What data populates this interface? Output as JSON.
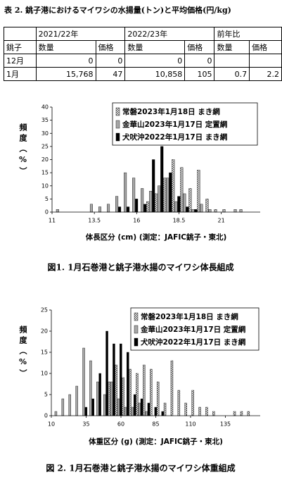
{
  "table": {
    "title": "表 2. 銚子港におけるマイワシの水揚量(トン)と平均価格(円/kg)",
    "groups": [
      "2021/22年",
      "2022/23年",
      "前年比"
    ],
    "columns": [
      "銚子",
      "数量",
      "価格",
      "数量",
      "価格",
      "数量",
      "価格"
    ],
    "rows": [
      [
        "12月",
        0,
        0,
        0,
        0
      ],
      [
        "1月",
        "15,768",
        47,
        "10,858",
        105,
        0.7,
        2.2
      ]
    ]
  },
  "chart_data": [
    {
      "type": "bar",
      "xlabel": "体長区分 (cm)  (測定：JAFIC銚子・東北)",
      "ylabel": "頻度（%）",
      "caption": "図1.  1月石巻港と銚子港水揚のマイワシ体長組成",
      "x": [
        11.5,
        12,
        12.5,
        13,
        13.5,
        14,
        14.5,
        15,
        15.5,
        16,
        16.5,
        17,
        17.5,
        18,
        18.5,
        19,
        19.5,
        20,
        20.5,
        21,
        21.5,
        22
      ],
      "series": [
        {
          "name": "常磐2023年1月18日  まき網",
          "color": "#ffffff",
          "pattern": "dots",
          "values": [
            0,
            0,
            0,
            0,
            0,
            0,
            0,
            0,
            0,
            0,
            4,
            7,
            13,
            20,
            17,
            9,
            16,
            5,
            1,
            1,
            0,
            1
          ]
        },
        {
          "name": "金華山2023年1月17日  定置網",
          "color": "#a6a6a6",
          "values": [
            1,
            0,
            0,
            0,
            3,
            2,
            3,
            6,
            15,
            13,
            9,
            8,
            10,
            13,
            4,
            7,
            1,
            3,
            1,
            0,
            0,
            1
          ]
        },
        {
          "name": "犬吠沖2022年1月17日  まき網",
          "color": "#000000",
          "values": [
            0,
            0,
            0,
            0,
            0,
            0,
            0,
            2,
            2,
            5,
            3,
            20,
            25,
            15,
            6,
            2,
            1,
            0,
            0,
            0,
            0,
            0
          ]
        }
      ],
      "xlim": [
        11,
        23.3
      ],
      "xticks": [
        11,
        13.5,
        16,
        18.5,
        21
      ],
      "ylim": [
        0,
        40
      ],
      "yticks": [
        0,
        5,
        10,
        15,
        20,
        25,
        30,
        35,
        40
      ],
      "legend": "top-right"
    },
    {
      "type": "bar",
      "xlabel": "体重区分 (g)  (測定：JAFIC銚子・東北)",
      "ylabel": "頻度（%）",
      "caption": "図 2. 1月石巻港と銚子港水揚のマイワシ体重組成",
      "x": [
        15,
        20,
        25,
        30,
        35,
        40,
        45,
        50,
        55,
        60,
        65,
        70,
        75,
        80,
        85,
        90,
        95,
        100,
        105,
        110,
        115,
        120,
        125,
        130,
        135,
        140,
        145,
        150
      ],
      "series": [
        {
          "name": "常磐2023年1月18日  まき網",
          "color": "#ffffff",
          "pattern": "dots",
          "values": [
            0,
            0,
            0,
            0,
            0,
            0,
            0,
            8,
            12,
            9,
            11,
            10,
            12,
            11,
            8,
            3,
            13,
            6,
            3,
            6,
            2,
            2,
            1,
            0,
            0,
            1,
            1,
            1
          ]
        },
        {
          "name": "金華山2023年1月17日  定置網",
          "color": "#a6a6a6",
          "values": [
            1,
            4,
            5,
            7,
            16,
            13,
            8,
            5,
            8,
            4,
            2,
            2,
            3,
            1,
            0,
            0,
            0,
            0,
            0,
            0,
            0,
            0,
            0,
            0,
            0,
            0,
            0,
            0
          ]
        },
        {
          "name": "犬吠沖2022年1月17日  まき網",
          "color": "#000000",
          "values": [
            0,
            0,
            0,
            0,
            2,
            4,
            10,
            20,
            17,
            17,
            15,
            5,
            4,
            3,
            2,
            1,
            0,
            0,
            0,
            0,
            0,
            0,
            0,
            0,
            0,
            0,
            0,
            0
          ]
        }
      ],
      "xlim": [
        10,
        160
      ],
      "xticks": [
        10,
        35,
        60,
        85,
        110,
        135
      ],
      "ylim": [
        0,
        25
      ],
      "yticks": [
        0,
        5,
        10,
        15,
        20,
        25
      ],
      "legend": "top-right"
    }
  ]
}
